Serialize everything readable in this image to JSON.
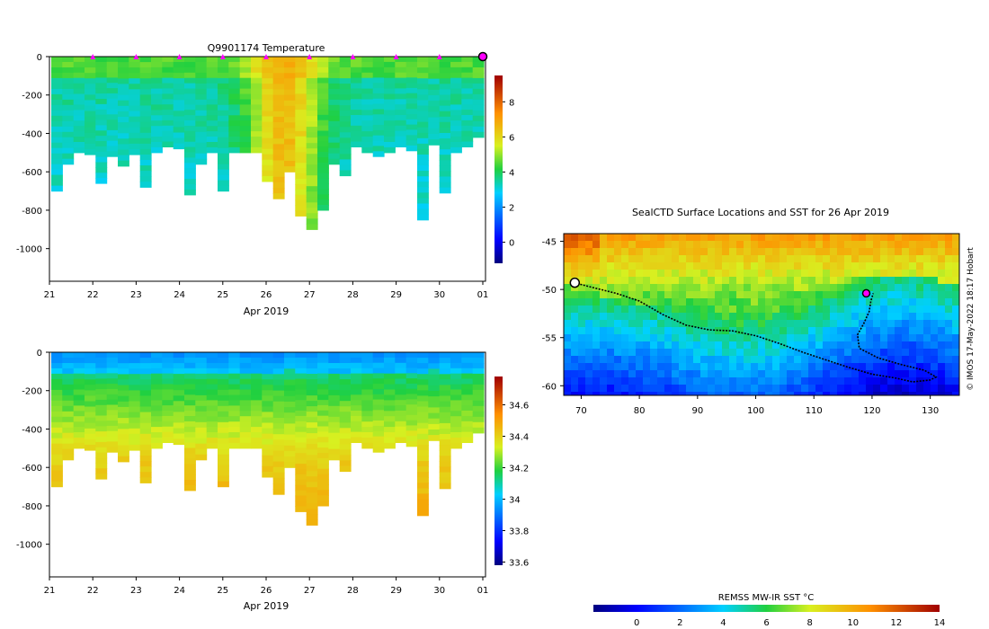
{
  "chart_data": [
    {
      "type": "heatmap",
      "title": "Q9901174  Temperature",
      "xlabel": "Apr 2019",
      "ylabel": "",
      "x_ticks": [
        "21",
        "22",
        "23",
        "24",
        "25",
        "26",
        "27",
        "28",
        "29",
        "30",
        "01"
      ],
      "y_ticks": [
        "0",
        "-200",
        "-400",
        "-600",
        "-800",
        "-1000"
      ],
      "ylim": [
        -1170,
        0
      ],
      "xlim": [
        21,
        31
      ],
      "profile_marker_days": [
        22,
        23,
        24,
        25,
        26,
        27,
        28,
        29,
        30
      ],
      "current_position_marker_day": 31,
      "colorbar": {
        "min": -1.2,
        "max": 9.5,
        "ticks": [
          "0",
          "2",
          "4",
          "6",
          "8"
        ]
      },
      "profile_max_depths": [
        -700,
        -560,
        -500,
        -510,
        -660,
        -520,
        -570,
        -510,
        -680,
        -500,
        -470,
        -480,
        -720,
        -560,
        -500,
        -700,
        -500,
        -500,
        -500,
        -650,
        -740,
        -600,
        -830,
        -900,
        -800,
        -560,
        -620,
        -470,
        -500,
        -520,
        -500,
        -470,
        -490,
        -850,
        -460,
        -710,
        -500,
        -470,
        -420
      ]
    },
    {
      "type": "heatmap",
      "title": "",
      "xlabel": "Apr 2019",
      "ylabel": "",
      "x_ticks": [
        "21",
        "22",
        "23",
        "24",
        "25",
        "26",
        "27",
        "28",
        "29",
        "30",
        "01"
      ],
      "y_ticks": [
        "0",
        "-200",
        "-400",
        "-600",
        "-800",
        "-1000"
      ],
      "ylim": [
        -1170,
        0
      ],
      "xlim": [
        21,
        31
      ],
      "colorbar": {
        "min": 33.58,
        "max": 34.78,
        "ticks": [
          "33.6",
          "33.8",
          "34",
          "34.2",
          "34.4",
          "34.6"
        ]
      }
    },
    {
      "type": "map",
      "title": "SealCTD Surface Locations and SST for 26 Apr 2019",
      "x_ticks": [
        "70",
        "80",
        "90",
        "100",
        "110",
        "120",
        "130"
      ],
      "y_ticks": [
        "-45",
        "-50",
        "-55",
        "-60"
      ],
      "xlim": [
        67,
        135
      ],
      "ylim": [
        -61,
        -44.2
      ],
      "track_points": [
        [
          68.8,
          -49.3
        ],
        [
          72,
          -49.8
        ],
        [
          76,
          -50.4
        ],
        [
          80,
          -51.2
        ],
        [
          84,
          -52.6
        ],
        [
          88,
          -53.7
        ],
        [
          92,
          -54.2
        ],
        [
          96,
          -54.3
        ],
        [
          100,
          -54.8
        ],
        [
          104,
          -55.6
        ],
        [
          108,
          -56.5
        ],
        [
          112,
          -57.3
        ],
        [
          116,
          -58.1
        ],
        [
          120,
          -58.8
        ],
        [
          124,
          -59.2
        ],
        [
          127,
          -59.6
        ],
        [
          130,
          -59.4
        ],
        [
          131,
          -59.1
        ],
        [
          129,
          -58.4
        ],
        [
          125,
          -57.8
        ],
        [
          121,
          -57.1
        ],
        [
          117.8,
          -56.1
        ],
        [
          117.5,
          -54.7
        ],
        [
          118.6,
          -53.5
        ],
        [
          119.5,
          -52.3
        ],
        [
          119.8,
          -51.2
        ],
        [
          120.2,
          -50.4
        ]
      ],
      "start_marker": [
        68.9,
        -49.3
      ],
      "current_marker": [
        119,
        -50.4
      ],
      "colorbar_label": "REMSS MW-IR SST °C",
      "colorbar": {
        "min": -2,
        "max": 14,
        "ticks": [
          "0",
          "2",
          "4",
          "6",
          "8",
          "10",
          "12",
          "14"
        ]
      },
      "credit": "© IMOS 17-May-2022 18:17 Hobart"
    }
  ]
}
